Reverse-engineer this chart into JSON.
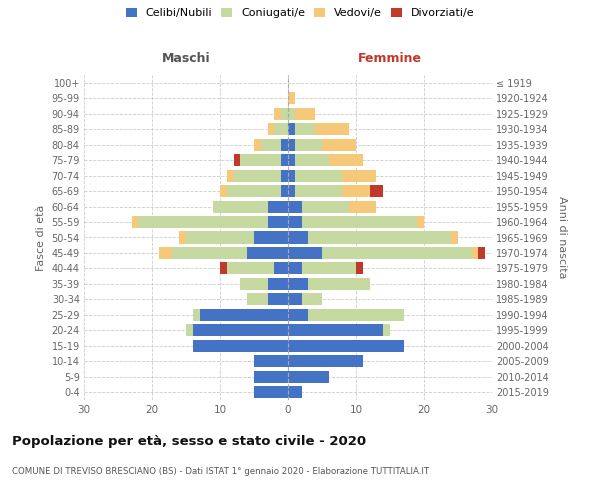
{
  "age_groups": [
    "0-4",
    "5-9",
    "10-14",
    "15-19",
    "20-24",
    "25-29",
    "30-34",
    "35-39",
    "40-44",
    "45-49",
    "50-54",
    "55-59",
    "60-64",
    "65-69",
    "70-74",
    "75-79",
    "80-84",
    "85-89",
    "90-94",
    "95-99",
    "100+"
  ],
  "birth_years": [
    "2015-2019",
    "2010-2014",
    "2005-2009",
    "2000-2004",
    "1995-1999",
    "1990-1994",
    "1985-1989",
    "1980-1984",
    "1975-1979",
    "1970-1974",
    "1965-1969",
    "1960-1964",
    "1955-1959",
    "1950-1954",
    "1945-1949",
    "1940-1944",
    "1935-1939",
    "1930-1934",
    "1925-1929",
    "1920-1924",
    "≤ 1919"
  ],
  "maschi": {
    "celibi": [
      5,
      5,
      5,
      14,
      14,
      13,
      3,
      3,
      2,
      6,
      5,
      3,
      3,
      1,
      1,
      1,
      1,
      0,
      0,
      0,
      0
    ],
    "coniugati": [
      0,
      0,
      0,
      0,
      1,
      1,
      3,
      4,
      7,
      11,
      10,
      19,
      8,
      8,
      7,
      6,
      3,
      2,
      1,
      0,
      0
    ],
    "vedovi": [
      0,
      0,
      0,
      0,
      0,
      0,
      0,
      0,
      0,
      2,
      1,
      1,
      0,
      1,
      1,
      0,
      1,
      1,
      1,
      0,
      0
    ],
    "divorziati": [
      0,
      0,
      0,
      0,
      0,
      0,
      0,
      0,
      1,
      0,
      0,
      0,
      0,
      0,
      0,
      1,
      0,
      0,
      0,
      0,
      0
    ]
  },
  "femmine": {
    "nubili": [
      2,
      6,
      11,
      17,
      14,
      3,
      2,
      3,
      2,
      5,
      3,
      2,
      2,
      1,
      1,
      1,
      1,
      1,
      0,
      0,
      0
    ],
    "coniugate": [
      0,
      0,
      0,
      0,
      1,
      14,
      3,
      9,
      8,
      22,
      21,
      17,
      7,
      7,
      7,
      5,
      4,
      3,
      1,
      0,
      0
    ],
    "vedove": [
      0,
      0,
      0,
      0,
      0,
      0,
      0,
      0,
      0,
      1,
      1,
      1,
      4,
      4,
      5,
      5,
      5,
      5,
      3,
      1,
      0
    ],
    "divorziate": [
      0,
      0,
      0,
      0,
      0,
      0,
      0,
      0,
      1,
      1,
      0,
      0,
      0,
      2,
      0,
      0,
      0,
      0,
      0,
      0,
      0
    ]
  },
  "colors": {
    "celibi_nubili": "#4472c4",
    "coniugati": "#c5d9a0",
    "vedovi": "#f5c87a",
    "divorziati": "#c0392b"
  },
  "xlim": 30,
  "title": "Popolazione per età, sesso e stato civile - 2020",
  "subtitle": "COMUNE DI TREVISO BRESCIANO (BS) - Dati ISTAT 1° gennaio 2020 - Elaborazione TUTTITALIA.IT",
  "ylabel_left": "Fasce di età",
  "ylabel_right": "Anni di nascita",
  "legend_labels": [
    "Celibi/Nubili",
    "Coniugati/e",
    "Vedovi/e",
    "Divorziati/e"
  ]
}
